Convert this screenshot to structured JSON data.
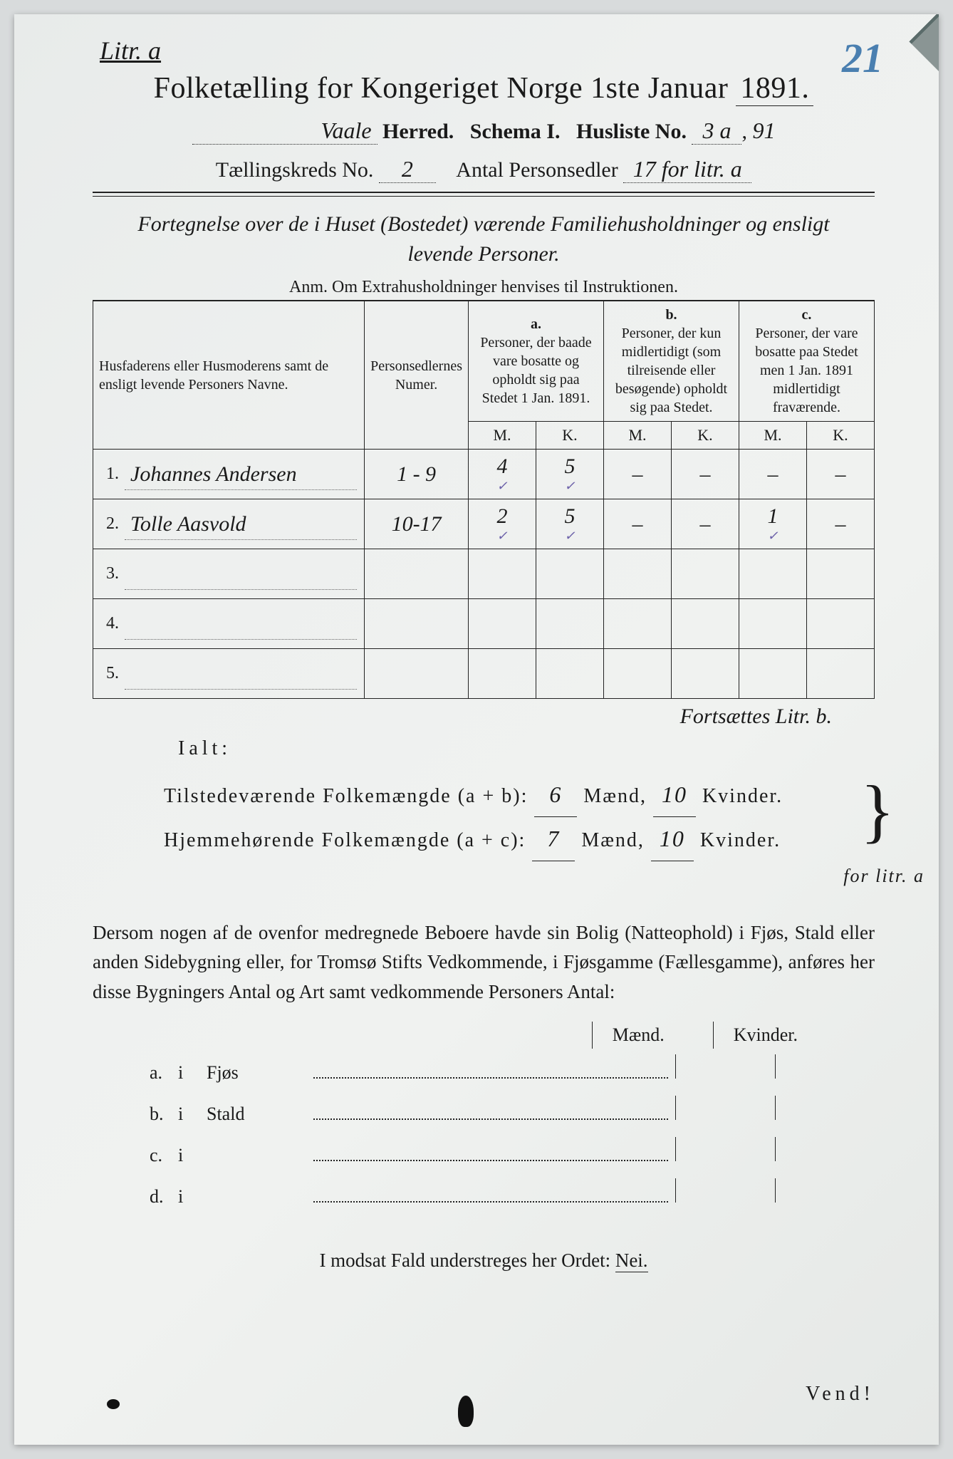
{
  "annotations": {
    "litr": "Litr. a",
    "page_number": "21",
    "rightnote_91": "91",
    "side_hand": "for litr. a"
  },
  "header": {
    "title_prefix": "Folketælling for Kongeriget Norge 1ste Januar ",
    "title_year": "1891.",
    "herred_value": "Vaale",
    "herred_label": "Herred.",
    "schema_label": "Schema I.",
    "husliste_label": "Husliste No.",
    "husliste_value": "3 a",
    "kreds_label": "Tællingskreds No.",
    "kreds_value": "2",
    "antal_label": "Antal Personsedler",
    "antal_value": "17 for litr. a"
  },
  "subtitle": {
    "line1": "Fortegnelse over de i Huset (Bostedet) værende Familiehusholdninger og ensligt",
    "line2": "levende Personer.",
    "anm": "Anm. Om Extrahusholdninger henvises til Instruktionen."
  },
  "table": {
    "col_name": "Husfaderens eller Husmoderens samt de ensligt levende Personers Navne.",
    "col_num": "Personsedlernes Numer.",
    "col_a_letter": "a.",
    "col_a": "Personer, der baade vare bosatte og opholdt sig paa Stedet 1 Jan. 1891.",
    "col_b_letter": "b.",
    "col_b": "Personer, der kun midlertidigt (som tilreisende eller besøgende) opholdt sig paa Stedet.",
    "col_c_letter": "c.",
    "col_c": "Personer, der vare bosatte paa Stedet men 1 Jan. 1891 midlertidigt fraværende.",
    "M": "M.",
    "K": "K.",
    "rows": [
      {
        "n": "1.",
        "name": "Johannes Andersen",
        "num": "1 - 9",
        "aM": "4",
        "aK": "5",
        "bM": "–",
        "bK": "–",
        "cM": "–",
        "cK": "–"
      },
      {
        "n": "2.",
        "name": "Tolle Aasvold",
        "num": "10-17",
        "aM": "2",
        "aK": "5",
        "bM": "–",
        "bK": "–",
        "cM": "1",
        "cK": "–"
      },
      {
        "n": "3.",
        "name": "",
        "num": "",
        "aM": "",
        "aK": "",
        "bM": "",
        "bK": "",
        "cM": "",
        "cK": ""
      },
      {
        "n": "4.",
        "name": "",
        "num": "",
        "aM": "",
        "aK": "",
        "bM": "",
        "bK": "",
        "cM": "",
        "cK": ""
      },
      {
        "n": "5.",
        "name": "",
        "num": "",
        "aM": "",
        "aK": "",
        "bM": "",
        "bK": "",
        "cM": "",
        "cK": ""
      }
    ],
    "fortsat": "Fortsættes Litr. b."
  },
  "totals": {
    "ialt": "Ialt:",
    "line1_label": "Tilstedeværende Folkemængde (a + b):",
    "line1_m": "6",
    "line1_k": "10",
    "line2_label": "Hjemmehørende Folkemængde (a + c):",
    "line2_m": "7",
    "line2_k": "10",
    "maend": "Mænd,",
    "kvinder": "Kvinder."
  },
  "dersom": "Dersom nogen af de ovenfor medregnede Beboere havde sin Bolig (Natteophold) i Fjøs, Stald eller anden Sidebygning eller, for Tromsø Stifts Vedkommende, i Fjøsgamme (Fællesgamme), anføres her disse Bygningers Antal og Art samt vedkommende Personers Antal:",
  "lower": {
    "maend": "Mænd.",
    "kvinder": "Kvinder.",
    "rows": [
      {
        "l": "a.",
        "i": "i",
        "cat": "Fjøs"
      },
      {
        "l": "b.",
        "i": "i",
        "cat": "Stald"
      },
      {
        "l": "c.",
        "i": "i",
        "cat": ""
      },
      {
        "l": "d.",
        "i": "i",
        "cat": ""
      }
    ]
  },
  "modsat": "I modsat Fald understreges her Ordet: ",
  "nei": "Nei.",
  "vend": "Vend!",
  "colors": {
    "paper": "#eef0ef",
    "ink": "#1a1a1a",
    "blue_ink": "#4a7fb0",
    "violet_check": "#6a5fa8"
  }
}
